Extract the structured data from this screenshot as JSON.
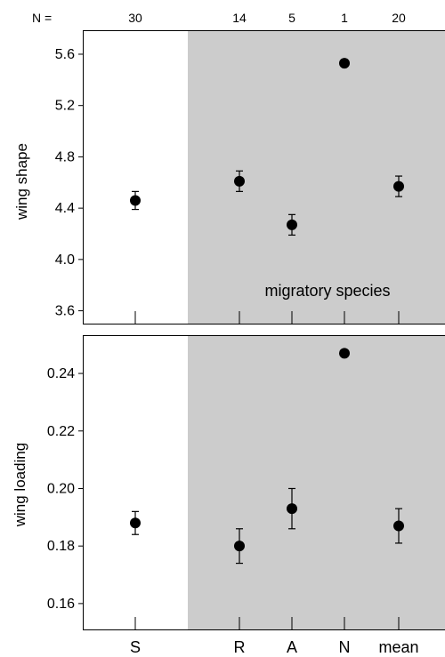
{
  "n_label": "N =",
  "sample_sizes": [
    "30",
    "14",
    "5",
    "1",
    "20"
  ],
  "categories": [
    "S",
    "R",
    "A",
    "N",
    "mean"
  ],
  "shade_color": "#cccccc",
  "chart_data": [
    {
      "type": "scatter",
      "ylabel": "wing shape",
      "ylim": [
        3.5,
        5.78
      ],
      "yticks": [
        "3.6",
        "4.0",
        "4.4",
        "4.8",
        "5.2",
        "5.6"
      ],
      "annotation": "migratory species",
      "shaded_categories": [
        "R",
        "A",
        "N",
        "mean"
      ],
      "points": [
        {
          "category": "S",
          "y": 4.46,
          "err_low": 4.39,
          "err_high": 4.53
        },
        {
          "category": "R",
          "y": 4.61,
          "err_low": 4.53,
          "err_high": 4.69
        },
        {
          "category": "A",
          "y": 4.27,
          "err_low": 4.19,
          "err_high": 4.35
        },
        {
          "category": "N",
          "y": 5.53
        },
        {
          "category": "mean",
          "y": 4.57,
          "err_low": 4.49,
          "err_high": 4.65
        }
      ]
    },
    {
      "type": "scatter",
      "ylabel": "wing loading",
      "ylim": [
        0.151,
        0.253
      ],
      "yticks": [
        "0.16",
        "0.18",
        "0.20",
        "0.22",
        "0.24"
      ],
      "shaded_categories": [
        "R",
        "A",
        "N",
        "mean"
      ],
      "points": [
        {
          "category": "S",
          "y": 0.188,
          "err_low": 0.184,
          "err_high": 0.192
        },
        {
          "category": "R",
          "y": 0.18,
          "err_low": 0.174,
          "err_high": 0.186
        },
        {
          "category": "A",
          "y": 0.193,
          "err_low": 0.186,
          "err_high": 0.2
        },
        {
          "category": "N",
          "y": 0.247
        },
        {
          "category": "mean",
          "y": 0.187,
          "err_low": 0.181,
          "err_high": 0.193
        }
      ]
    }
  ]
}
